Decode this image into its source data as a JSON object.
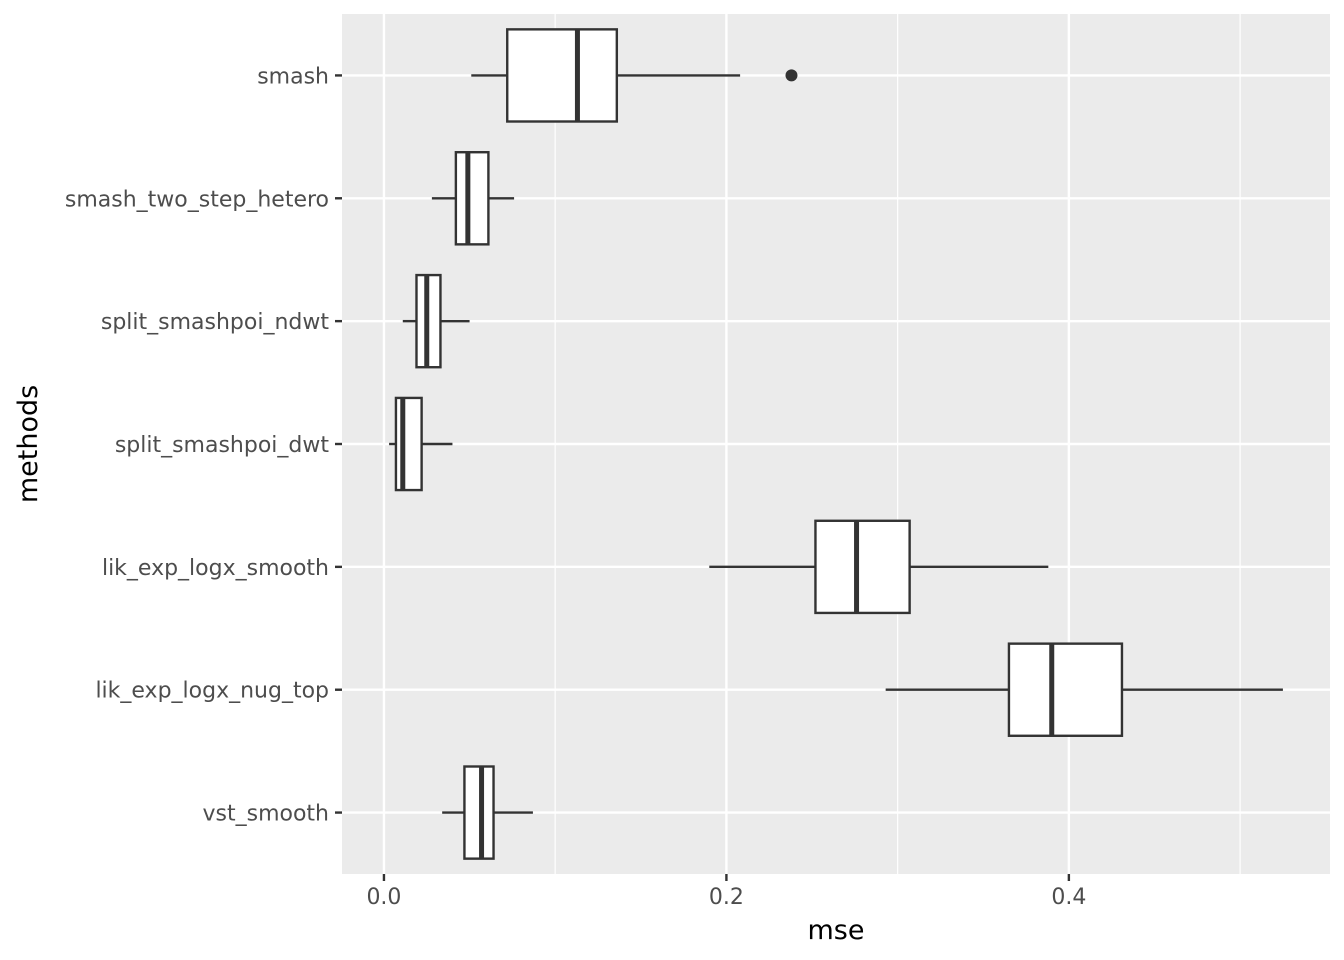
{
  "chart_data": {
    "type": "boxplot",
    "orientation": "horizontal",
    "title": "",
    "xlabel": "mse",
    "ylabel": "methods",
    "xlim": [
      -0.0245,
      0.5525
    ],
    "x_ticks": [
      0.0,
      0.2,
      0.4
    ],
    "x_tick_labels": [
      "0.0",
      "0.2",
      "0.4"
    ],
    "grid": true,
    "categories": [
      "smash",
      "smash_two_step_hetero",
      "split_smashpoi_ndwt",
      "split_smashpoi_dwt",
      "lik_exp_logx_smooth",
      "lik_exp_logx_nug_top",
      "vst_smooth"
    ],
    "boxes": [
      {
        "name": "smash",
        "whisker_low": 0.051,
        "q1": 0.072,
        "median": 0.113,
        "q3": 0.136,
        "whisker_high": 0.208,
        "outliers": [
          0.238
        ]
      },
      {
        "name": "smash_two_step_hetero",
        "whisker_low": 0.028,
        "q1": 0.042,
        "median": 0.049,
        "q3": 0.061,
        "whisker_high": 0.076,
        "outliers": []
      },
      {
        "name": "split_smashpoi_ndwt",
        "whisker_low": 0.011,
        "q1": 0.019,
        "median": 0.025,
        "q3": 0.033,
        "whisker_high": 0.05,
        "outliers": []
      },
      {
        "name": "split_smashpoi_dwt",
        "whisker_low": 0.003,
        "q1": 0.007,
        "median": 0.011,
        "q3": 0.022,
        "whisker_high": 0.04,
        "outliers": []
      },
      {
        "name": "lik_exp_logx_smooth",
        "whisker_low": 0.19,
        "q1": 0.252,
        "median": 0.276,
        "q3": 0.307,
        "whisker_high": 0.388,
        "outliers": []
      },
      {
        "name": "lik_exp_logx_nug_top",
        "whisker_low": 0.293,
        "q1": 0.365,
        "median": 0.39,
        "q3": 0.431,
        "whisker_high": 0.525,
        "outliers": []
      },
      {
        "name": "vst_smooth",
        "whisker_low": 0.034,
        "q1": 0.047,
        "median": 0.057,
        "q3": 0.064,
        "whisker_high": 0.087,
        "outliers": []
      }
    ],
    "colors": {
      "panel_background": "#ebebeb",
      "grid": "#ffffff",
      "box_fill": "#ffffff",
      "box_stroke": "#333333"
    }
  }
}
